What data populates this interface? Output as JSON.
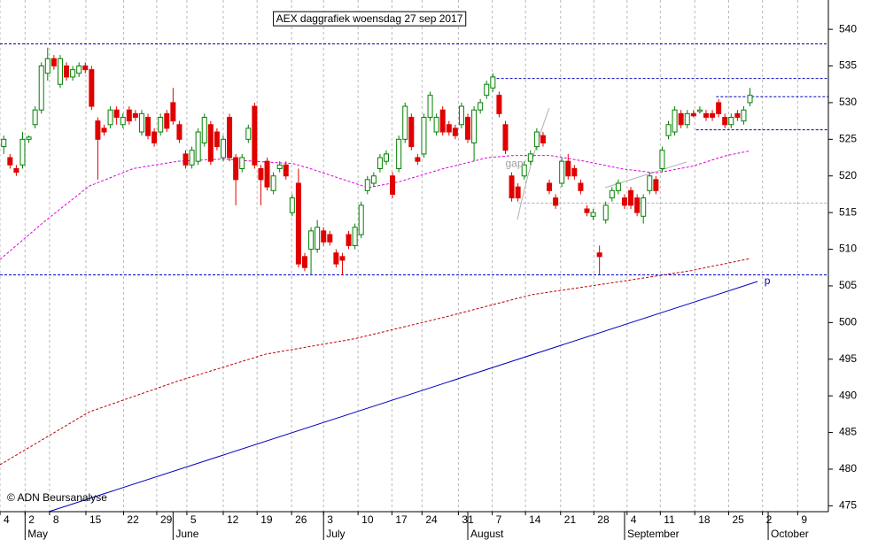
{
  "chart_data": {
    "type": "candlestick",
    "title": "AEX daggrafiek woensdag 27 sep 2017",
    "footer": "© ADN Beursanalyse",
    "up_color": "#008000",
    "down_color": "#e00000",
    "open": [
      524,
      522.5,
      521,
      521.5,
      525,
      527,
      529,
      534,
      536,
      532.5,
      535,
      533.5,
      534,
      535,
      534.5,
      527.5,
      526.5,
      527,
      529,
      527,
      529,
      528.5,
      526,
      528,
      526,
      526,
      528.5,
      530,
      527,
      523,
      521.5,
      522,
      524.5,
      527,
      526,
      522.5,
      528,
      522.5,
      521,
      525,
      529.5,
      521,
      522,
      518,
      521,
      521.5,
      515,
      519,
      509,
      510,
      510,
      512.5,
      512,
      509.5,
      509,
      512,
      510.5,
      512,
      518,
      519,
      521,
      522,
      520,
      521,
      525,
      528,
      522.5,
      523,
      528,
      526,
      529,
      527,
      526.5,
      527,
      528,
      524.5,
      529,
      531,
      532,
      531,
      527,
      520,
      518.5,
      520,
      522,
      524,
      525.5,
      519,
      517,
      519,
      522,
      521,
      519,
      515.5,
      514.5,
      509.5,
      514,
      517,
      518,
      517,
      518,
      517,
      514.5,
      518,
      519.5,
      521,
      525.5,
      526,
      528.5,
      527,
      528.5,
      528.8,
      528.5,
      528.5,
      530,
      528,
      527,
      528.5,
      527.5,
      530
    ],
    "high": [
      525.5,
      523,
      521.5,
      526,
      525.5,
      529.5,
      535.5,
      537.5,
      536.5,
      536.5,
      535.5,
      535,
      535.5,
      535.5,
      535,
      528,
      527,
      529.5,
      529.5,
      528.5,
      529.5,
      529,
      529,
      528.5,
      526.5,
      528.5,
      529,
      532,
      527.5,
      523.5,
      524,
      526.5,
      528.5,
      527.5,
      526.5,
      525.5,
      528.5,
      523,
      523,
      527,
      530,
      521.5,
      522.5,
      520.5,
      522,
      522,
      517.5,
      521,
      509.5,
      513,
      514,
      513,
      512.5,
      510,
      509.5,
      512.5,
      513.5,
      516.5,
      520,
      520.5,
      523,
      523.5,
      520.5,
      525.5,
      530,
      528.5,
      523,
      528.5,
      531.5,
      528.5,
      529.5,
      527.5,
      527,
      530,
      528.5,
      529.5,
      530.5,
      533,
      534,
      531.5,
      527.5,
      520.5,
      519,
      522,
      523.5,
      526.5,
      526,
      519.5,
      517.5,
      522.5,
      523,
      521.5,
      519.5,
      516,
      515.5,
      510.5,
      516.5,
      518.5,
      519.5,
      517.5,
      518.5,
      517.5,
      517.5,
      520.5,
      520,
      524,
      527.5,
      529.5,
      529,
      529,
      529,
      529.5,
      529,
      529,
      530.5,
      528.5,
      528.5,
      529,
      529.5,
      532
    ],
    "low": [
      523,
      521,
      520,
      521,
      524.5,
      526.5,
      528.5,
      533,
      534.5,
      532,
      533,
      533,
      533.5,
      534,
      529,
      519.5,
      525.5,
      526.5,
      527,
      526.5,
      527,
      527.5,
      525.5,
      525,
      524,
      525.5,
      526,
      527,
      524.5,
      521,
      521,
      521.5,
      524,
      521.5,
      523.5,
      522,
      522,
      516,
      520.5,
      524.5,
      521,
      516,
      518,
      517.5,
      520.5,
      519.5,
      514.5,
      507.5,
      507,
      506.5,
      509.5,
      510.5,
      510.5,
      507.5,
      506.5,
      510,
      510,
      511.5,
      517.5,
      518.5,
      520.5,
      521.5,
      517,
      520.5,
      524.5,
      523.5,
      521.5,
      522.5,
      527.5,
      525.5,
      525.5,
      525.5,
      525,
      526.5,
      524.5,
      522,
      528.5,
      530.5,
      531.5,
      528,
      523,
      516.5,
      516.5,
      519.5,
      521.5,
      523.5,
      524,
      517.5,
      515.5,
      518.5,
      519.5,
      519.5,
      517.5,
      514.5,
      514,
      506.5,
      513.5,
      516.5,
      517.5,
      515.5,
      515.5,
      514.5,
      513.5,
      517.5,
      517.5,
      520.5,
      525,
      525.5,
      526.5,
      526.5,
      528,
      528.5,
      527.5,
      527.5,
      528,
      526.5,
      526.5,
      527.5,
      527,
      529.5
    ],
    "close": [
      525,
      521.5,
      520.5,
      525,
      525.3,
      529,
      535,
      536,
      535,
      536,
      533.5,
      534.5,
      535,
      534.5,
      529.5,
      525,
      526,
      529,
      528,
      528,
      527.5,
      528,
      528.5,
      525.5,
      524.5,
      528,
      526.5,
      527.5,
      525,
      521.5,
      523.5,
      526,
      528,
      522,
      524,
      525,
      522.5,
      519.5,
      522.5,
      526.5,
      521.5,
      519.5,
      518.5,
      520,
      521.5,
      520,
      517,
      508,
      507.5,
      512.5,
      513,
      511,
      511,
      508,
      508.5,
      510.5,
      513,
      516,
      519.5,
      520,
      522.5,
      523,
      517.5,
      525,
      529.5,
      524,
      522,
      528,
      531,
      528,
      526,
      526,
      525.5,
      529.5,
      525,
      529,
      530,
      532.5,
      533.5,
      528.5,
      523.5,
      517,
      517,
      521.5,
      523,
      526,
      524.5,
      518,
      516,
      522,
      520,
      520,
      518,
      515,
      515,
      509,
      516,
      518,
      519,
      516,
      516,
      515,
      517,
      520,
      518,
      523.5,
      527,
      529,
      527,
      528.5,
      528.2,
      529,
      528,
      528,
      528.5,
      527,
      528,
      528,
      529,
      531
    ],
    "xlim": [
      -0.6,
      131.5
    ],
    "ylim": [
      474.2,
      544
    ],
    "yticks": [
      475,
      480,
      485,
      490,
      495,
      500,
      505,
      510,
      515,
      520,
      525,
      530,
      535,
      540
    ],
    "xticks": [
      {
        "value": -0.6,
        "label": "4"
      },
      {
        "value": 3.4,
        "label": "2"
      },
      {
        "value": 7.3,
        "label": "8"
      },
      {
        "value": 13.1,
        "label": "15"
      },
      {
        "value": 19.1,
        "label": "22"
      },
      {
        "value": 24.4,
        "label": "29"
      },
      {
        "value": 29.2,
        "label": "5"
      },
      {
        "value": 35.0,
        "label": "12"
      },
      {
        "value": 40.4,
        "label": "19"
      },
      {
        "value": 45.9,
        "label": "26"
      },
      {
        "value": 51.0,
        "label": "3"
      },
      {
        "value": 56.5,
        "label": "10"
      },
      {
        "value": 61.9,
        "label": "17"
      },
      {
        "value": 66.7,
        "label": "24"
      },
      {
        "value": 72.5,
        "label": "31"
      },
      {
        "value": 77.9,
        "label": "7"
      },
      {
        "value": 83.2,
        "label": "14"
      },
      {
        "value": 88.8,
        "label": "21"
      },
      {
        "value": 94.1,
        "label": "28"
      },
      {
        "value": 99.4,
        "label": "4"
      },
      {
        "value": 104.7,
        "label": "11"
      },
      {
        "value": 110.2,
        "label": "18"
      },
      {
        "value": 115.6,
        "label": "25"
      },
      {
        "value": 121.0,
        "label": "2"
      },
      {
        "value": 126.6,
        "label": "9"
      }
    ],
    "month_ticks": [
      {
        "value": 3.4,
        "label": "May"
      },
      {
        "value": 27.0,
        "label": "June"
      },
      {
        "value": 51.0,
        "label": "July"
      },
      {
        "value": 74.0,
        "label": "August"
      },
      {
        "value": 99.0,
        "label": "September"
      },
      {
        "value": 121.9,
        "label": "October"
      }
    ],
    "grid": true,
    "series": [
      {
        "color": "#e000e0",
        "x": [
          -0.6,
          6.5,
          13.6,
          20.6,
          27.7,
          34.8,
          41.8,
          46.1,
          48.9,
          53.1,
          58.1,
          63.0,
          70.1,
          77.2,
          81.4,
          87.1,
          92.7,
          98.4,
          104.0,
          109.7,
          115.3,
          118.9
        ],
        "values": [
          508.6,
          513.8,
          518.6,
          521.0,
          522.0,
          522.3,
          521.9,
          521.7,
          521.0,
          519.8,
          518.4,
          519.2,
          521.0,
          522.5,
          522.8,
          522.8,
          522.0,
          521.0,
          520.4,
          521.3,
          522.8,
          523.4
        ]
      },
      {
        "color": "#c00000",
        "x": [
          -0.6,
          13.6,
          27.7,
          41.8,
          56.0,
          70.1,
          84.2,
          98.4,
          109.7,
          118.9
        ],
        "values": [
          480.6,
          487.8,
          492.0,
          495.7,
          497.8,
          500.7,
          503.8,
          505.6,
          507.1,
          508.7
        ]
      },
      {
        "color": "#0000c0",
        "dash": false,
        "x": [
          7.2,
          120.2
        ],
        "values": [
          474.2,
          505.6
        ]
      }
    ],
    "hlines": [
      {
        "value": 538,
        "from": -0.6,
        "color": "#0000c0"
      },
      {
        "value": 533.3,
        "from": 78.6,
        "color": "#0000c0"
      },
      {
        "value": 530.8,
        "from": 113.6,
        "color": "#0000c0"
      },
      {
        "value": 526.3,
        "from": 110.4,
        "color": "#0000c0"
      },
      {
        "value": 506.5,
        "from": -0.6,
        "color": "#0000c0"
      },
      {
        "value": 516.3,
        "from": 82.1,
        "color": "#b0b0b0"
      }
    ],
    "annotations": [
      {
        "text": "gap",
        "x": 80.0,
        "y": 521.6,
        "color": "#a0a0a0"
      },
      {
        "text": "p",
        "x": 121.3,
        "y": 505.6,
        "color": "#0000c0"
      }
    ]
  }
}
